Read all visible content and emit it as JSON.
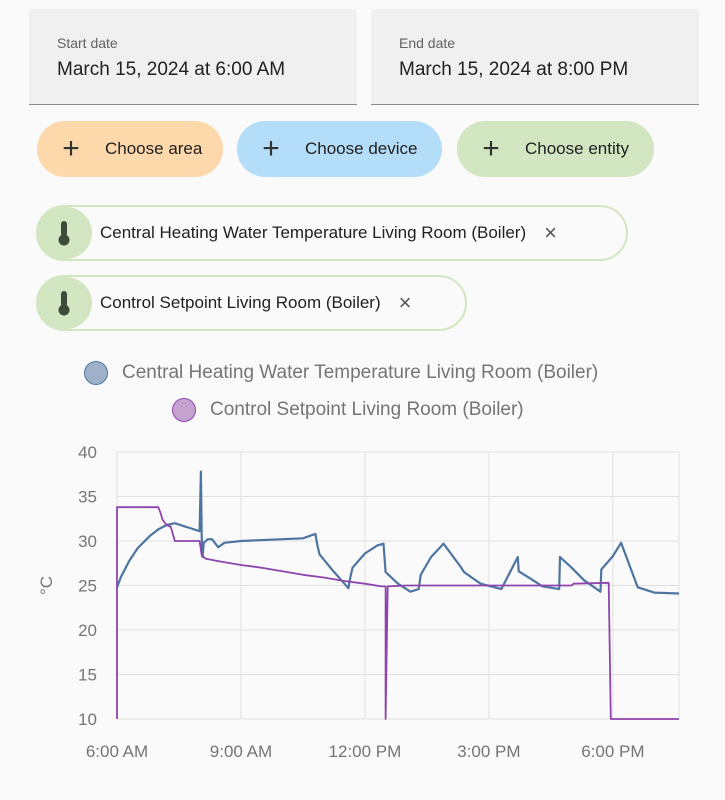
{
  "start_date": {
    "label": "Start date",
    "value": "March 15, 2024 at 6:00 AM"
  },
  "end_date": {
    "label": "End date",
    "value": "March 15, 2024 at 8:00 PM"
  },
  "targets": {
    "area": {
      "plus": "+",
      "label": "Choose area",
      "color": "#fdd8ab"
    },
    "device": {
      "plus": "+",
      "label": "Choose device",
      "color": "#b3ddf8"
    },
    "entity": {
      "plus": "+",
      "label": "Choose entity",
      "color": "#d2e6c1"
    }
  },
  "selected_entities": [
    {
      "label": "Central Heating Water Temperature Living Room (Boiler)",
      "icon": "thermometer-icon",
      "remove": "×"
    },
    {
      "label": "Control Setpoint Living Room (Boiler)",
      "icon": "thermometer-icon",
      "remove": "×"
    }
  ],
  "chart_data": {
    "type": "line",
    "ylabel": "°C",
    "ylim": [
      10,
      40
    ],
    "yticks": [
      10,
      15,
      20,
      25,
      30,
      35,
      40
    ],
    "xlim": [
      6.0,
      19.6
    ],
    "xticks": [
      {
        "value": 6,
        "label": "6:00 AM"
      },
      {
        "value": 9,
        "label": "9:00 AM"
      },
      {
        "value": 12,
        "label": "12:00 PM"
      },
      {
        "value": 15,
        "label": "3:00 PM"
      },
      {
        "value": 18,
        "label": "6:00 PM"
      }
    ],
    "grid": true,
    "legend_position": "top",
    "series": [
      {
        "name": "Central Heating Water Temperature Living Room (Boiler)",
        "color": "#4e75a0",
        "fill": "#9fb1c9",
        "x": [
          6.0,
          6.1,
          6.3,
          6.5,
          6.8,
          7.0,
          7.2,
          7.4,
          7.6,
          7.8,
          8.0,
          8.03,
          8.05,
          8.07,
          8.1,
          8.2,
          8.3,
          8.45,
          8.6,
          9.0,
          9.5,
          10.0,
          10.5,
          10.8,
          10.85,
          10.9,
          11.2,
          11.6,
          11.65,
          11.7,
          12.0,
          12.3,
          12.45,
          12.5,
          12.8,
          13.1,
          13.3,
          13.35,
          13.6,
          13.9,
          14.3,
          14.4,
          14.8,
          15.3,
          15.7,
          15.72,
          16.0,
          16.3,
          16.7,
          16.72,
          17.0,
          17.3,
          17.7,
          17.72,
          18.0,
          18.2,
          18.6,
          19.0,
          19.6
        ],
        "y": [
          24.8,
          26.0,
          27.8,
          29.2,
          30.6,
          31.3,
          31.8,
          32.0,
          31.7,
          31.4,
          31.1,
          37.8,
          30.5,
          28.2,
          29.8,
          30.2,
          30.2,
          29.3,
          29.8,
          30.0,
          30.1,
          30.2,
          30.3,
          30.8,
          29.5,
          28.5,
          26.8,
          24.7,
          26.0,
          27.0,
          28.6,
          29.5,
          29.7,
          26.5,
          25.2,
          24.3,
          24.6,
          26.2,
          28.2,
          29.7,
          27.2,
          26.5,
          25.2,
          24.6,
          28.2,
          26.6,
          25.8,
          24.9,
          24.6,
          28.2,
          27.0,
          25.6,
          24.3,
          26.8,
          28.3,
          29.8,
          24.8,
          24.2,
          24.1
        ]
      },
      {
        "name": "Control Setpoint Living Room (Boiler)",
        "color": "#8e44ad",
        "fill": "#c4a3cf",
        "x": [
          6.0,
          6.0,
          6.01,
          7.0,
          7.05,
          7.1,
          7.2,
          7.3,
          7.4,
          7.5,
          8.0,
          8.05,
          8.15,
          8.5,
          9.0,
          9.5,
          10.0,
          10.5,
          11.0,
          11.5,
          12.0,
          12.4,
          12.5,
          12.5,
          12.55,
          13.0,
          14.0,
          15.0,
          16.0,
          16.6,
          17.0,
          17.0,
          17.05,
          17.9,
          17.95,
          18.5,
          19.0,
          19.6
        ],
        "y": [
          10.0,
          33.8,
          33.8,
          33.8,
          33.2,
          32.4,
          31.8,
          31.6,
          30.0,
          30.0,
          30.0,
          28.4,
          28.0,
          27.7,
          27.3,
          27.0,
          26.6,
          26.2,
          25.9,
          25.5,
          25.2,
          24.9,
          24.9,
          10.0,
          24.9,
          25.0,
          25.0,
          25.0,
          25.0,
          25.0,
          25.0,
          25.0,
          25.2,
          25.3,
          10.0,
          10.0,
          10.0,
          10.0
        ]
      }
    ]
  }
}
